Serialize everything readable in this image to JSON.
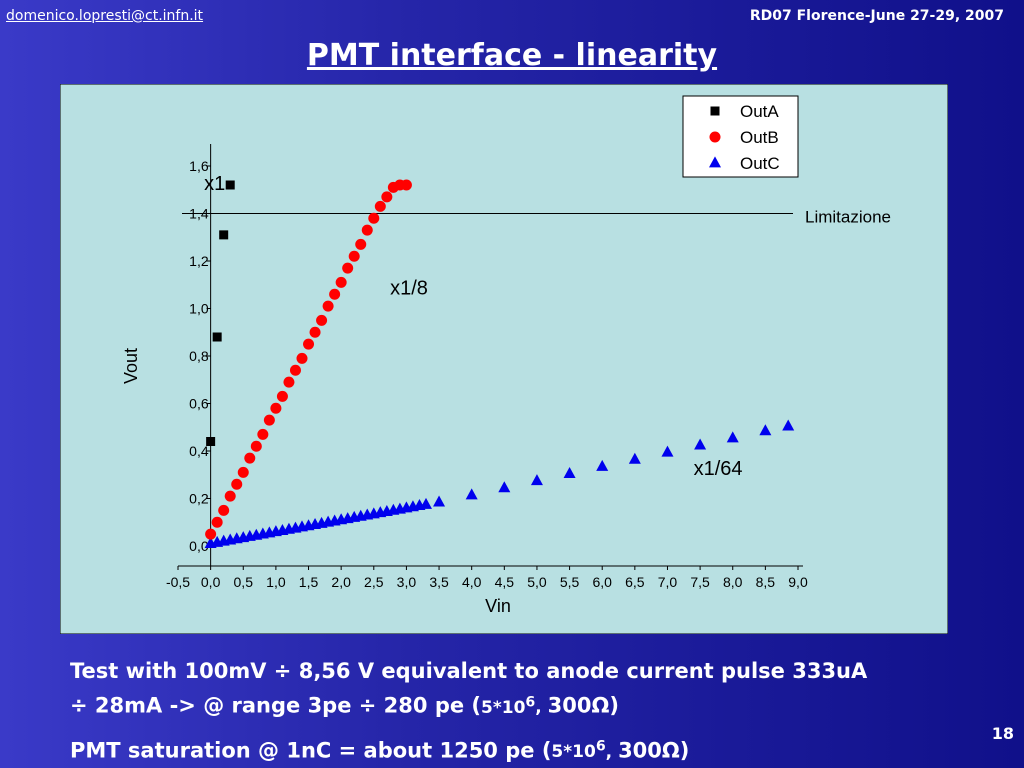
{
  "header": {
    "email": "domenico.lopresti@ct.infn.it",
    "conference": "RD07 Florence-June 27-29, 2007"
  },
  "title": "PMT interface - linearity",
  "colors": {
    "background": "#2a2ab0",
    "panel": "#b8e0e2",
    "outA": "#000000",
    "outB": "#ff0000",
    "outC": "#0000ee"
  },
  "chart_data": {
    "type": "scatter",
    "xlabel": "Vin",
    "ylabel": "Vout",
    "xlim": [
      -0.5,
      9.0
    ],
    "ylim": [
      0.0,
      1.6
    ],
    "x_ticks": [
      "-0,5",
      "0,0",
      "0,5",
      "1,0",
      "1,5",
      "2,0",
      "2,5",
      "3,0",
      "3,5",
      "4,0",
      "4,5",
      "5,0",
      "5,5",
      "6,0",
      "6,5",
      "7,0",
      "7,5",
      "8,0",
      "8,5",
      "9,0"
    ],
    "y_ticks": [
      "0,0",
      "0,2",
      "0,4",
      "0,6",
      "0,8",
      "1,0",
      "1,2",
      "1,4",
      "1,6"
    ],
    "grid": false,
    "legend": "top-right",
    "series": [
      {
        "name": "OutA",
        "marker": "square",
        "color": "#000000",
        "x": [
          0.0,
          0.1,
          0.2,
          0.3
        ],
        "y": [
          0.44,
          0.88,
          1.31,
          1.52
        ]
      },
      {
        "name": "OutB",
        "marker": "circle",
        "color": "#ff0000",
        "x": [
          0.0,
          0.1,
          0.2,
          0.3,
          0.4,
          0.5,
          0.6,
          0.7,
          0.8,
          0.9,
          1.0,
          1.1,
          1.2,
          1.3,
          1.4,
          1.5,
          1.6,
          1.7,
          1.8,
          1.9,
          2.0,
          2.1,
          2.2,
          2.3,
          2.4,
          2.5,
          2.6,
          2.7,
          2.8,
          2.9,
          3.0
        ],
        "y": [
          0.05,
          0.1,
          0.15,
          0.21,
          0.26,
          0.31,
          0.37,
          0.42,
          0.47,
          0.53,
          0.58,
          0.63,
          0.69,
          0.74,
          0.79,
          0.85,
          0.9,
          0.95,
          1.01,
          1.06,
          1.11,
          1.17,
          1.22,
          1.27,
          1.33,
          1.38,
          1.43,
          1.47,
          1.51,
          1.52,
          1.52
        ]
      },
      {
        "name": "OutC",
        "marker": "triangle",
        "color": "#0000ee",
        "x": [
          0.0,
          0.1,
          0.2,
          0.3,
          0.4,
          0.5,
          0.6,
          0.7,
          0.8,
          0.9,
          1.0,
          1.1,
          1.2,
          1.3,
          1.4,
          1.5,
          1.6,
          1.7,
          1.8,
          1.9,
          2.0,
          2.1,
          2.2,
          2.3,
          2.4,
          2.5,
          2.6,
          2.7,
          2.8,
          2.9,
          3.0,
          3.1,
          3.2,
          3.3,
          3.5,
          4.0,
          4.5,
          5.0,
          5.5,
          6.0,
          6.5,
          7.0,
          7.5,
          8.0,
          8.5,
          8.85
        ],
        "y": [
          0.01,
          0.015,
          0.02,
          0.025,
          0.03,
          0.035,
          0.04,
          0.045,
          0.05,
          0.055,
          0.06,
          0.065,
          0.07,
          0.075,
          0.08,
          0.085,
          0.09,
          0.095,
          0.1,
          0.105,
          0.11,
          0.115,
          0.12,
          0.125,
          0.13,
          0.135,
          0.14,
          0.145,
          0.15,
          0.155,
          0.16,
          0.165,
          0.17,
          0.175,
          0.185,
          0.215,
          0.245,
          0.275,
          0.305,
          0.335,
          0.365,
          0.395,
          0.425,
          0.455,
          0.485,
          0.505
        ]
      }
    ],
    "reference_line": {
      "label": "Limitazione",
      "y": 1.4
    },
    "annotations": [
      {
        "text": "x1",
        "x": -0.1,
        "y": 1.5
      },
      {
        "text": "x1/8",
        "x": 2.75,
        "y": 1.06
      },
      {
        "text": "x1/64",
        "x": 7.4,
        "y": 0.3
      }
    ]
  },
  "caption": {
    "line1_a": "Test with 100mV ÷ 8,56 V equivalent to anode current pulse 333uA",
    "line1_b": "÷ 28mA ->  @ range 3pe ÷ 280 pe (",
    "line1_c": "5*10",
    "line1_sup": "6",
    "line1_d": ", ",
    "line1_e": "300",
    "line1_omega": "Ω",
    "line1_f": ")",
    "line2_a": "PMT saturation @ 1nC = about 1250 pe (",
    "line2_c": "5*10",
    "line2_sup": "6",
    "line2_d": ", ",
    "line2_e": "300",
    "line2_omega": "Ω",
    "line2_f": ")"
  },
  "page_number": "18"
}
